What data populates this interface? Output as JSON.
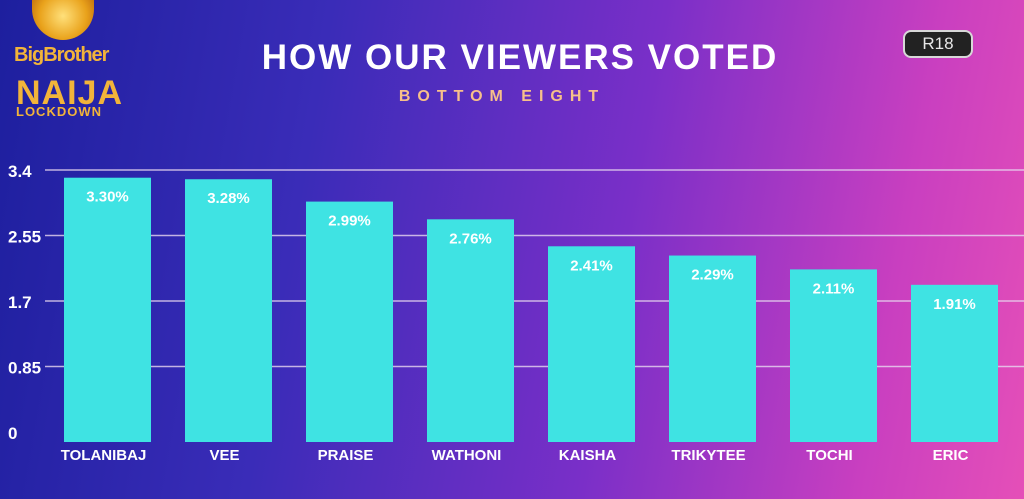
{
  "logo": {
    "line1": "BigBrother",
    "line2": "NAIJA",
    "line3": "LOCKDOWN"
  },
  "rating_badge": "R18",
  "chart_data": {
    "type": "bar",
    "title": "HOW OUR VIEWERS VOTED",
    "subtitle": "BOTTOM EIGHT",
    "categories": [
      "TOLANIBAJ",
      "VEE",
      "PRAISE",
      "WATHONI",
      "KAISHA",
      "TRIKYTEE",
      "TOCHI",
      "ERIC"
    ],
    "values": [
      3.3,
      3.28,
      2.99,
      2.76,
      2.41,
      2.29,
      2.11,
      1.91
    ],
    "value_labels": [
      "3.30%",
      "3.28%",
      "2.99%",
      "2.76%",
      "2.41%",
      "2.29%",
      "2.11%",
      "1.91%"
    ],
    "yticks": [
      0,
      0.85,
      1.7,
      2.55,
      3.4
    ],
    "ytick_labels": [
      "0",
      "0.85",
      "1.7",
      "2.55",
      "3.4"
    ],
    "ylim": [
      0,
      3.4
    ],
    "grid": true,
    "bar_color": "#3fe3e3",
    "grid_color": "#e8d8f0",
    "label_color": "#ffffff",
    "value_label_color": "#ffffff"
  }
}
